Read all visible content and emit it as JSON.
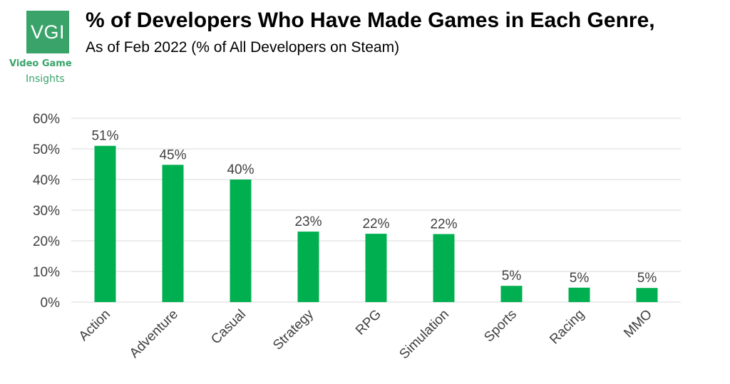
{
  "brand": {
    "logo_text": "VGI",
    "name_line1": "Video Game",
    "name_line2": "Insights",
    "color": "#3aa36a"
  },
  "chart_data": {
    "type": "bar",
    "title": "% of Developers Who Have Made Games in Each Genre,",
    "subtitle": "As of Feb 2022 (% of All Developers on Steam)",
    "categories": [
      "Action",
      "Adventure",
      "Casual",
      "Strategy",
      "RPG",
      "Simulation",
      "Sports",
      "Racing",
      "MMO"
    ],
    "values": [
      51,
      44.8,
      40,
      23,
      22.3,
      22.2,
      5.3,
      4.7,
      4.6
    ],
    "data_labels": [
      "51%",
      "45%",
      "40%",
      "23%",
      "22%",
      "22%",
      "5%",
      "5%",
      "5%"
    ],
    "yticks": [
      "0%",
      "10%",
      "20%",
      "30%",
      "40%",
      "50%",
      "60%"
    ],
    "ylim": [
      0,
      60
    ],
    "grid": true,
    "legend": "none",
    "bar_color": "#00b050",
    "grid_color": "#d9d9d9"
  }
}
